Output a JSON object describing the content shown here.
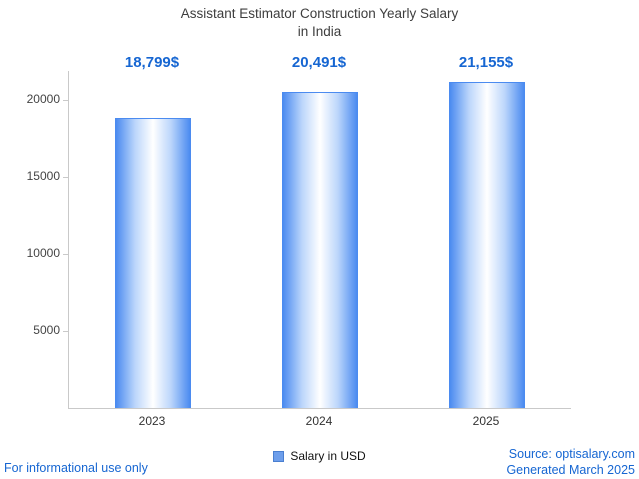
{
  "title": "Assistant Estimator Construction Yearly Salary\nin India",
  "chart_data": {
    "type": "bar",
    "categories": [
      "2023",
      "2024",
      "2025"
    ],
    "values": [
      18799,
      20491,
      21155
    ],
    "value_labels": [
      "18,799$",
      "20,491$",
      "21,155$"
    ],
    "title": "Assistant Estimator Construction Yearly Salary in India",
    "xlabel": "",
    "ylabel": "",
    "ylim": [
      0,
      21800
    ],
    "yticks": [
      5000,
      10000,
      15000,
      20000
    ],
    "grid": false,
    "legend_position": "bottom",
    "series_name": "Salary in USD"
  },
  "legend": {
    "label": "Salary in USD"
  },
  "footer": {
    "left": "For informational use only",
    "source": "Source: optisalary.com",
    "generated": "Generated March 2025"
  },
  "colors": {
    "accent_blue": "#1666d2",
    "bar_edge": "#4b8bf0",
    "bar_center": "#ffffff",
    "axis": "#c9c9c9",
    "legend_square": "#6d9eeb",
    "title_text": "#3d3d3d"
  }
}
